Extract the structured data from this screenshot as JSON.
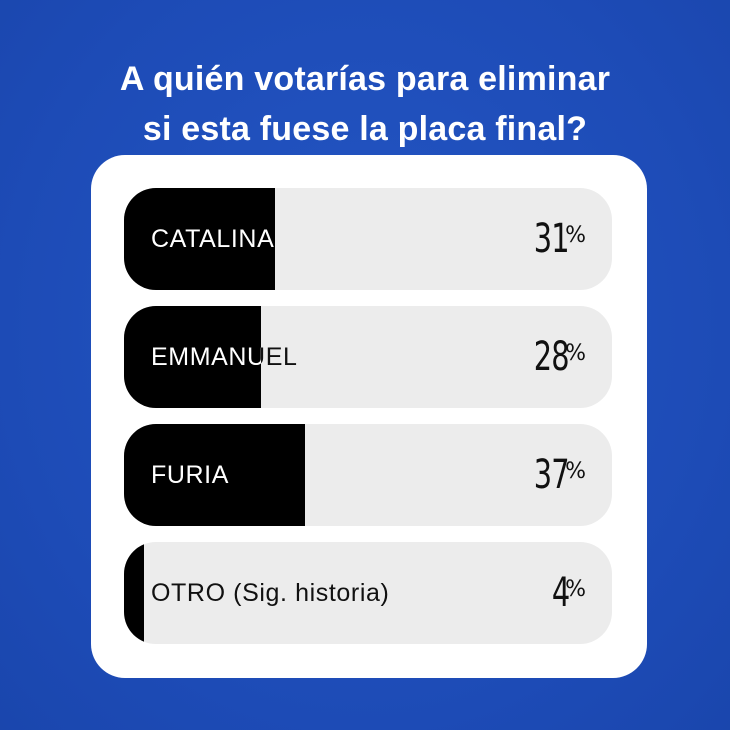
{
  "poll": {
    "question_line1": "A quién votarías para eliminar",
    "question_line2": "si esta fuese la placa final?",
    "options": [
      {
        "label": "CATALINA",
        "percent": 31,
        "percent_text": "31",
        "symbol": "%"
      },
      {
        "label": "EMMANUEL",
        "percent": 28,
        "percent_text": "28",
        "symbol": "%"
      },
      {
        "label": "FURIA",
        "percent": 37,
        "percent_text": "37",
        "symbol": "%"
      },
      {
        "label": "OTRO (Sig. historia)",
        "percent": 4,
        "percent_text": "4",
        "symbol": "%"
      }
    ]
  },
  "colors": {
    "background": "#1e4fbc",
    "card": "#ffffff",
    "bar_track": "#ececec",
    "bar_fill": "#000000",
    "text_dark": "#111111",
    "text_light": "#ffffff"
  }
}
